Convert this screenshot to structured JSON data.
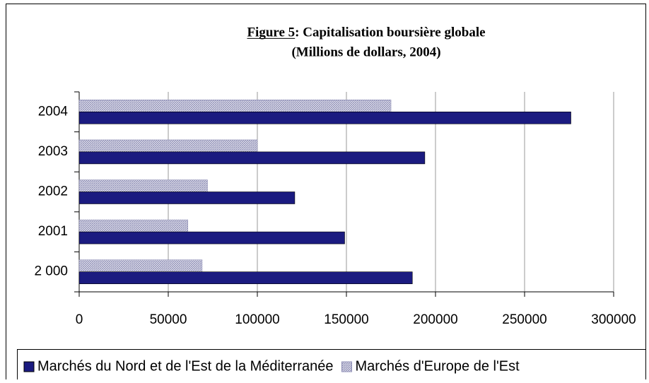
{
  "chart_data": {
    "type": "hbar",
    "title": "Figure 5: Capitalisation boursière globale",
    "subtitle": "(Millions de dollars, 2004)",
    "categories": [
      "2 000",
      "2001",
      "2002",
      "2003",
      "2004"
    ],
    "series": [
      {
        "name": "Marchés du Nord et de l'Est de la Méditerranée",
        "color": "#1b1b80",
        "values": [
          187000,
          149000,
          121000,
          194000,
          276000
        ]
      },
      {
        "name": "Marchés d'Europe de l'Est",
        "color": "#8c8cb4",
        "values": [
          69000,
          61000,
          72000,
          100000,
          175000
        ]
      }
    ],
    "xlim": [
      0,
      300000
    ],
    "xticks": [
      0,
      50000,
      100000,
      150000,
      200000,
      250000,
      300000
    ],
    "grid": true
  }
}
